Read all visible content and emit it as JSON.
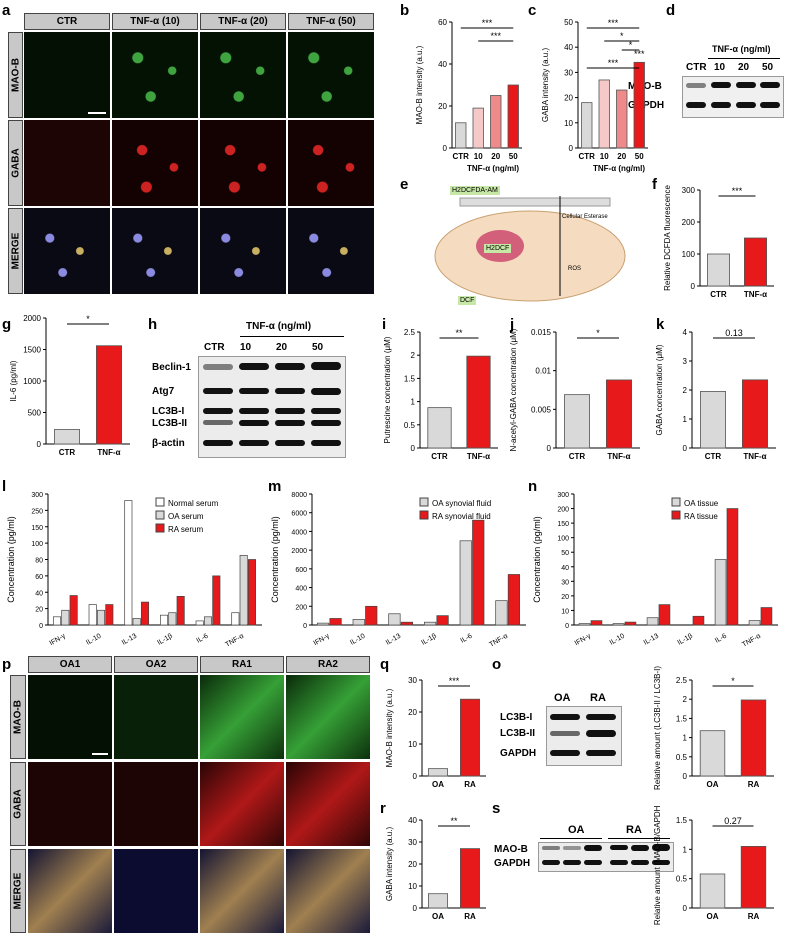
{
  "labels": {
    "a": "a",
    "b": "b",
    "c": "c",
    "d": "d",
    "e": "e",
    "f": "f",
    "g": "g",
    "h": "h",
    "i": "i",
    "j": "j",
    "k": "k",
    "l": "l",
    "m": "m",
    "n": "n",
    "o": "o",
    "p": "p",
    "q": "q",
    "r": "r",
    "s": "s"
  },
  "panel_a": {
    "cols": [
      "CTR",
      "TNF-α (10)",
      "TNF-α (20)",
      "TNF-α (50)"
    ],
    "rows": [
      "MAO-B",
      "GABA",
      "MERGE"
    ]
  },
  "panel_p": {
    "cols": [
      "OA1",
      "OA2",
      "RA1",
      "RA2"
    ],
    "rows": [
      "MAO-B",
      "GABA",
      "MERGE"
    ]
  },
  "panel_d": {
    "title": "TNF-α (ng/ml)",
    "lanes": [
      "CTR",
      "10",
      "20",
      "50"
    ],
    "bands": [
      "MAO-B",
      "GAPDH"
    ]
  },
  "panel_e": {
    "labels": [
      "H2DCFDA-AM",
      "Cellular Esterase",
      "H2DCF",
      "ROS",
      "DCF"
    ]
  },
  "panel_h": {
    "title": "TNF-α (ng/ml)",
    "lanes": [
      "CTR",
      "10",
      "20",
      "50"
    ],
    "bands": [
      "Beclin-1",
      "Atg7",
      "LC3B-I",
      "LC3B-II",
      "β-actin"
    ]
  },
  "panel_o": {
    "lanes": [
      "OA",
      "RA"
    ],
    "bands": [
      "LC3B-I",
      "LC3B-II",
      "GAPDH"
    ]
  },
  "panel_s": {
    "lanes": [
      "OA",
      "RA"
    ],
    "bands": [
      "MAO-B",
      "GAPDH"
    ]
  },
  "chart_data": [
    {
      "id": "b",
      "type": "bar",
      "categories": [
        "CTR",
        "10",
        "20",
        "50"
      ],
      "values": [
        12,
        19,
        25,
        30
      ],
      "ylabel": "MAO-B intensity (a.u.)",
      "xlabel": "TNF-α (ng/ml)",
      "ylim": [
        0,
        60
      ],
      "yticks": [
        0,
        20,
        40,
        60
      ],
      "sig": [
        "***",
        "***"
      ],
      "colors": [
        "#d9d9d9",
        "#f6c9c9",
        "#ee8a8a",
        "#e8191a"
      ]
    },
    {
      "id": "c",
      "type": "bar",
      "categories": [
        "CTR",
        "10",
        "20",
        "50"
      ],
      "values": [
        18,
        27,
        23,
        34
      ],
      "ylabel": "GABA intensity (a.u.)",
      "xlabel": "TNF-α (ng/ml)",
      "ylim": [
        0,
        50
      ],
      "yticks": [
        0,
        10,
        20,
        30,
        40,
        50
      ],
      "sig": [
        "***",
        "*",
        "*",
        "***",
        "***"
      ],
      "colors": [
        "#d9d9d9",
        "#f6c9c9",
        "#ee8a8a",
        "#e8191a"
      ]
    },
    {
      "id": "f",
      "type": "bar",
      "categories": [
        "CTR",
        "TNF-α"
      ],
      "values": [
        100,
        150
      ],
      "ylabel": "Relative DCFDA fluorescence",
      "ylim": [
        0,
        300
      ],
      "yticks": [
        0,
        100,
        200,
        300
      ],
      "sig": [
        "***"
      ],
      "colors": [
        "#d9d9d9",
        "#e8191a"
      ]
    },
    {
      "id": "g",
      "type": "bar",
      "categories": [
        "CTR",
        "TNF-α"
      ],
      "values": [
        230,
        1560
      ],
      "ylabel": "IL-6 (pg/ml)",
      "ylim": [
        0,
        2000
      ],
      "yticks": [
        0,
        500,
        1000,
        1500,
        2000
      ],
      "sig": [
        "*"
      ],
      "colors": [
        "#d9d9d9",
        "#e8191a"
      ]
    },
    {
      "id": "i",
      "type": "bar",
      "categories": [
        "CTR",
        "TNF-α"
      ],
      "values": [
        0.87,
        1.98
      ],
      "ylabel": "Putrescine concentration (μM)",
      "ylim": [
        0,
        2.5
      ],
      "yticks": [
        0.0,
        0.5,
        1.0,
        1.5,
        2.0,
        2.5
      ],
      "sig": [
        "**"
      ],
      "colors": [
        "#d9d9d9",
        "#e8191a"
      ]
    },
    {
      "id": "j",
      "type": "bar",
      "categories": [
        "CTR",
        "TNF-α"
      ],
      "values": [
        0.0069,
        0.0088
      ],
      "ylabel": "N-acetyl-GABA concentration (μM)",
      "ylim": [
        0,
        0.015
      ],
      "yticks": [
        0.0,
        0.005,
        0.01,
        0.015
      ],
      "sig": [
        "*"
      ],
      "colors": [
        "#d9d9d9",
        "#e8191a"
      ]
    },
    {
      "id": "k",
      "type": "bar",
      "categories": [
        "CTR",
        "TNF-α"
      ],
      "values": [
        1.95,
        2.35
      ],
      "ylabel": "GABA concentration (μM)",
      "ylim": [
        0,
        4
      ],
      "yticks": [
        0,
        1,
        2,
        3,
        4
      ],
      "sig": [
        "0.13"
      ],
      "colors": [
        "#d9d9d9",
        "#e8191a"
      ]
    },
    {
      "id": "l",
      "type": "bar",
      "categories": [
        "IFN-γ",
        "IL-10",
        "IL-13",
        "IL-1β",
        "IL-6",
        "TNF-α"
      ],
      "series": [
        {
          "name": "Normal serum",
          "values": [
            10,
            25,
            280,
            12,
            5,
            15
          ]
        },
        {
          "name": "OA serum",
          "values": [
            18,
            18,
            8,
            15,
            10,
            85
          ]
        },
        {
          "name": "RA serum",
          "values": [
            36,
            25,
            28,
            35,
            60,
            80
          ]
        }
      ],
      "ylabel": "Concentration (pg/ml)",
      "yticks": [
        0,
        20,
        40,
        60,
        80,
        100,
        150,
        250,
        300
      ],
      "colors": [
        "#ffffff",
        "#d9d9d9",
        "#e8191a"
      ]
    },
    {
      "id": "m",
      "type": "bar",
      "categories": [
        "IFN-γ",
        "IL-10",
        "IL-13",
        "IL-1β",
        "IL-6",
        "TNF-α"
      ],
      "series": [
        {
          "name": "OA synovial fluid",
          "values": [
            20,
            60,
            120,
            30,
            3000,
            260
          ]
        },
        {
          "name": "RA synovial fluid",
          "values": [
            70,
            200,
            30,
            100,
            5200,
            540
          ]
        }
      ],
      "ylabel": "Concentration (pg/ml)",
      "yticks": [
        0,
        200,
        400,
        600,
        2000,
        4000,
        6000,
        8000
      ],
      "colors": [
        "#d9d9d9",
        "#e8191a"
      ]
    },
    {
      "id": "n",
      "type": "bar",
      "categories": [
        "IFN-γ",
        "IL-10",
        "IL-13",
        "IL-1β",
        "IL-6",
        "TNF-α"
      ],
      "series": [
        {
          "name": "OA tissue",
          "values": [
            1,
            1,
            5,
            0,
            45,
            3
          ]
        },
        {
          "name": "RA tissue",
          "values": [
            3,
            2,
            14,
            6,
            200,
            12
          ]
        }
      ],
      "ylabel": "Concentration (pg/ml)",
      "yticks": [
        0,
        10,
        20,
        30,
        40,
        50,
        100,
        150,
        200,
        300
      ],
      "colors": [
        "#d9d9d9",
        "#e8191a"
      ]
    },
    {
      "id": "q",
      "type": "bar",
      "categories": [
        "OA",
        "RA"
      ],
      "values": [
        2.3,
        24
      ],
      "ylabel": "MAO-B intensity (a.u.)",
      "ylim": [
        0,
        30
      ],
      "yticks": [
        0,
        10,
        20,
        30
      ],
      "sig": [
        "***"
      ],
      "colors": [
        "#d9d9d9",
        "#e8191a"
      ]
    },
    {
      "id": "o2",
      "type": "bar",
      "categories": [
        "OA",
        "RA"
      ],
      "values": [
        1.18,
        1.98
      ],
      "ylabel": "Relative amount (LC3B-II / LC3B-I)",
      "ylim": [
        0,
        2.5
      ],
      "yticks": [
        0.0,
        0.5,
        1.0,
        1.5,
        2.0,
        2.5
      ],
      "sig": [
        "*"
      ],
      "colors": [
        "#d9d9d9",
        "#e8191a"
      ]
    },
    {
      "id": "r",
      "type": "bar",
      "categories": [
        "OA",
        "RA"
      ],
      "values": [
        6.5,
        27
      ],
      "ylabel": "GABA intensity (a.u.)",
      "ylim": [
        0,
        40
      ],
      "yticks": [
        0,
        10,
        20,
        30,
        40
      ],
      "sig": [
        "**"
      ],
      "colors": [
        "#d9d9d9",
        "#e8191a"
      ]
    },
    {
      "id": "s2",
      "type": "bar",
      "categories": [
        "OA",
        "RA"
      ],
      "values": [
        0.58,
        1.05
      ],
      "ylabel": "Relative amount (MAO-B/GAPDH)",
      "ylim": [
        0,
        1.5
      ],
      "yticks": [
        0.0,
        0.5,
        1.0,
        1.5
      ],
      "sig": [
        "0.27"
      ],
      "colors": [
        "#d9d9d9",
        "#e8191a"
      ]
    }
  ]
}
